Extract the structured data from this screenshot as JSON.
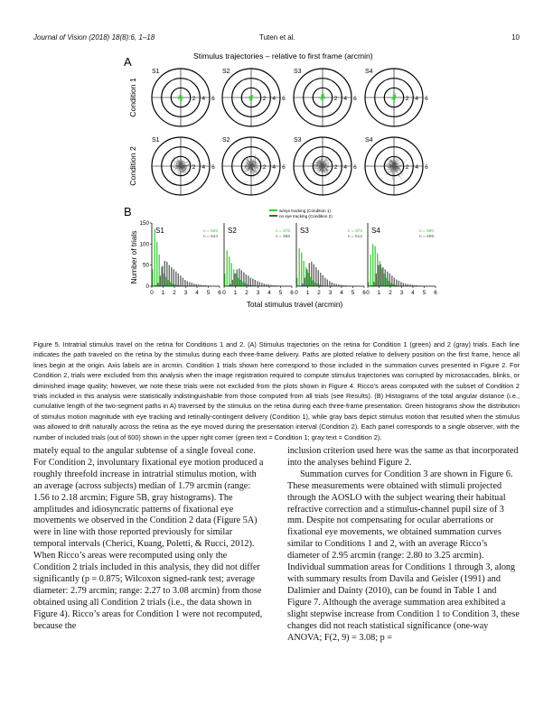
{
  "header": {
    "journal": "Journal of Vision (2018) 18(8):6, 1–18",
    "authors": "Tuten et al.",
    "page": "10"
  },
  "figure": {
    "panel_a_label": "A",
    "panel_b_label": "B",
    "panel_a_title": "Stimulus trajectories – relative to first frame (arcmin)",
    "row_labels": [
      "Condition 1",
      "Condition 2"
    ],
    "subjects": [
      "S1",
      "S2",
      "S3",
      "S4"
    ],
    "ring_labels": [
      "2",
      "4",
      "6"
    ],
    "colors": {
      "condition1": "#33cc33",
      "condition2": "#555555"
    },
    "legend": [
      "w/eye tracking (Condition 1)",
      "no eye tracking (Condition 2)"
    ],
    "counts_green": [
      "n = 505",
      "n = 375",
      "n = 373",
      "n = 580"
    ],
    "counts_gray": [
      "n = 544",
      "n = 386",
      "n = 512",
      "n = 499"
    ],
    "ylabel": "Number of trials",
    "xlabel": "Total stimulus travel (arcmin)",
    "y_ticks": [
      "0",
      "50",
      "100",
      "150"
    ],
    "x_ticks": [
      "0",
      "1",
      "2",
      "3",
      "4",
      "5",
      "6"
    ]
  },
  "chart_data": {
    "type": "bar",
    "title": "",
    "xlabel": "Total stimulus travel (arcmin)",
    "ylabel": "Number of trials",
    "xlim": [
      0,
      6
    ],
    "ylim": [
      0,
      150
    ],
    "bin_width": 0.2,
    "panels": [
      {
        "subject": "S1",
        "series": [
          {
            "name": "w/eye tracking (Condition 1)",
            "values": [
              40,
              135,
              105,
              75,
              45,
              30,
              22,
              15,
              10,
              6,
              4,
              3,
              2,
              1,
              1,
              0,
              0,
              0,
              0,
              0,
              0,
              0,
              0,
              0,
              0,
              0,
              0,
              0,
              0,
              0
            ]
          },
          {
            "name": "no eye tracking (Condition 2)",
            "values": [
              0,
              2,
              8,
              25,
              48,
              60,
              58,
              50,
              45,
              40,
              35,
              30,
              25,
              20,
              15,
              12,
              10,
              8,
              6,
              5,
              4,
              3,
              2,
              2,
              1,
              1,
              0,
              0,
              0,
              0
            ]
          }
        ]
      },
      {
        "subject": "S2",
        "series": [
          {
            "name": "w/eye tracking (Condition 1)",
            "values": [
              30,
              85,
              70,
              55,
              40,
              30,
              20,
              15,
              10,
              8,
              5,
              3,
              2,
              1,
              1,
              0,
              0,
              0,
              0,
              0,
              0,
              0,
              0,
              0,
              0,
              0,
              0,
              0,
              0,
              0
            ]
          },
          {
            "name": "no eye tracking (Condition 2)",
            "values": [
              0,
              1,
              5,
              15,
              30,
              40,
              42,
              38,
              33,
              28,
              25,
              20,
              18,
              15,
              12,
              10,
              8,
              6,
              5,
              4,
              3,
              2,
              2,
              1,
              1,
              0,
              0,
              0,
              0,
              0
            ]
          }
        ]
      },
      {
        "subject": "S3",
        "series": [
          {
            "name": "w/eye tracking (Condition 1)",
            "values": [
              20,
              90,
              80,
              60,
              45,
              32,
              22,
              14,
              9,
              6,
              4,
              2,
              1,
              1,
              0,
              0,
              0,
              0,
              0,
              0,
              0,
              0,
              0,
              0,
              0,
              0,
              0,
              0,
              0,
              0
            ]
          },
          {
            "name": "no eye tracking (Condition 2)",
            "values": [
              0,
              1,
              6,
              20,
              40,
              55,
              58,
              52,
              45,
              38,
              32,
              26,
              20,
              16,
              12,
              9,
              7,
              5,
              4,
              3,
              2,
              2,
              1,
              1,
              0,
              0,
              0,
              0,
              0,
              0
            ]
          }
        ]
      },
      {
        "subject": "S4",
        "series": [
          {
            "name": "w/eye tracking (Condition 1)",
            "values": [
              10,
              75,
              100,
              95,
              78,
              60,
              42,
              30,
              20,
              13,
              8,
              5,
              3,
              2,
              1,
              1,
              0,
              0,
              0,
              0,
              0,
              0,
              0,
              0,
              0,
              0,
              0,
              0,
              0,
              0
            ]
          },
          {
            "name": "no eye tracking (Condition 2)",
            "values": [
              0,
              2,
              10,
              30,
              50,
              52,
              45,
              40,
              35,
              30,
              25,
              20,
              16,
              13,
              10,
              8,
              6,
              5,
              4,
              3,
              2,
              2,
              1,
              1,
              0,
              0,
              0,
              0,
              0,
              0
            ]
          }
        ]
      }
    ]
  },
  "caption": "Figure 5. Intratrial stimulus travel on the retina for Conditions 1 and 2. (A) Stimulus trajectories on the retina for Condition 1 (green) and 2 (gray) trials. Each line indicates the path traveled on the retina by the stimulus during each three-frame delivery. Paths are plotted relative to delivery position on the first frame, hence all lines begin at the origin. Axis labels are in arcmin. Condition 1 trials shown here correspond to those included in the summation curves presented in Figure 2. For Condition 2, trials were excluded from this analysis when the image registration required to compute stimulus trajectories was corrupted by microsaccades, blinks, or diminished image quality; however, we note these trials were not excluded from the plots shown in Figure 4. Ricco’s areas computed with the subset of Condition 2 trials included in this analysis were statistically indistinguishable from those computed from all trials (see Results). (B) Histograms of the total angular distance (i.e., cumulative length of the two-segment paths in A) traversed by the stimulus on the retina during each three-frame presentation. Green histograms show the distribution of stimulus motion magnitude with eye tracking and retinally-contingent delivery (Condition 1), while gray bars depict stimulus motion that resulted when the stimulus was allowed to drift naturally across the retina as the eye moved during the presentation interval (Condition 2). Each panel corresponds to a single observer, with the number of included trials (out of 600) shown in the upper right corner (green text = Condition 1; gray text = Condition 2).",
  "body": {
    "left": "mately equal to the angular subtense of a single foveal cone. For Condition 2, involuntary fixational eye motion produced a roughly threefold increase in intratrial stimulus motion, with an average (across subjects) median of 1.79 arcmin (range: 1.56 to 2.18 arcmin; Figure 5B, gray histograms). The amplitudes and idiosyncratic patterns of fixational eye movements we observed in the Condition 2 data (Figure 5A) were in line with those reported previously for similar temporal intervals (Cherici, Kuang, Poletti, & Rucci, 2012). When Ricco’s areas were recomputed using only the Condition 2 trials included in this analysis, they did not differ significantly (p = 0.875; Wilcoxon signed-rank test; average diameter: 2.79 arcmin; range: 2.27 to 3.08 arcmin) from those obtained using all Condition 2 trials (i.e., the data shown in Figure 4). Ricco’s areas for Condition 1 were not recomputed, because the",
    "right_p1": "inclusion criterion used here was the same as that incorporated into the analyses behind Figure 2.",
    "right_p2": "Summation curves for Condition 3 are shown in Figure 6. These measurements were obtained with stimuli projected through the AOSLO with the subject wearing their habitual refractive correction and a stimulus-channel pupil size of 3 mm. Despite not compensating for ocular aberrations or fixational eye movements, we obtained summation curves similar to Conditions 1 and 2, with an average Ricco’s diameter of 2.95 arcmin (range: 2.80 to 3.25 arcmin). Individual summation areas for Conditions 1 through 3, along with summary results from Davila and Geisler (1991) and Dalimier and Dainty (2010), can be found in Table 1 and Figure 7. Although the average summation area exhibited a slight stepwise increase from Condition 1 to Condition 3, these changes did not reach statistical significance (one-way ANOVA; F(2, 9) = 3.08; p ="
  }
}
